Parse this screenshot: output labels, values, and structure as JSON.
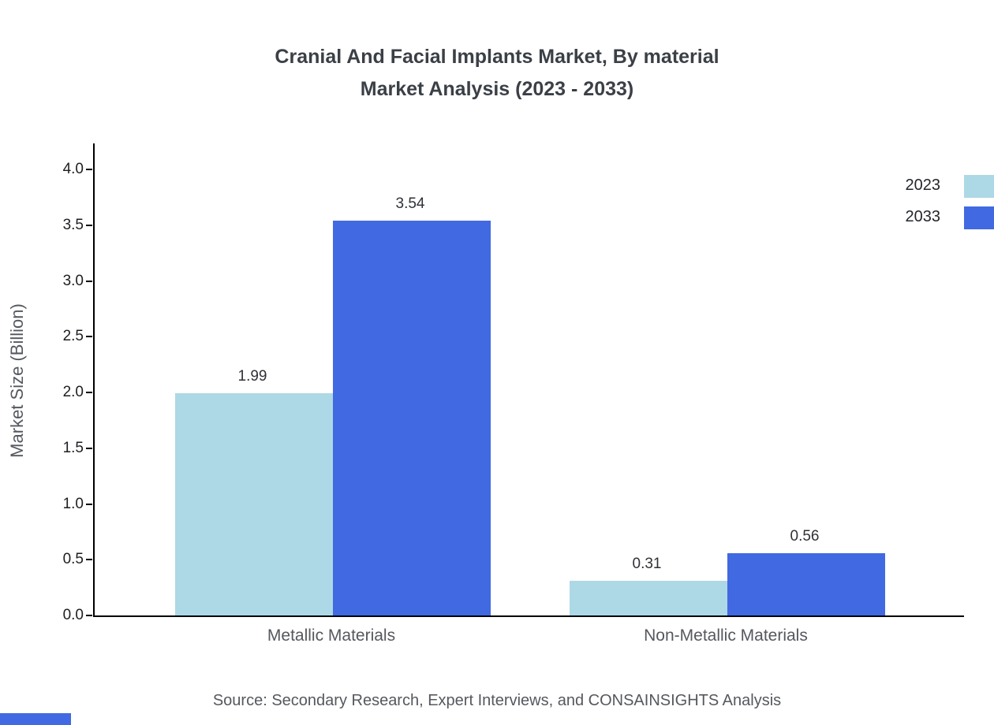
{
  "title": {
    "line1": "Cranial And Facial Implants Market, By material",
    "line2": "Market Analysis (2023 - 2033)"
  },
  "source": "Source: Secondary Research, Expert Interviews, and CONSAINSIGHTS Analysis",
  "chart_data": {
    "type": "bar",
    "title": "Cranial And Facial Implants Market, By material Market Analysis (2023 - 2033)",
    "categories": [
      "Metallic Materials",
      "Non-Metallic Materials"
    ],
    "series": [
      {
        "name": "2023",
        "color": "#add8e6",
        "values": [
          1.99,
          0.31
        ]
      },
      {
        "name": "2033",
        "color": "#4169e1",
        "values": [
          3.54,
          0.56
        ]
      }
    ],
    "xlabel": "",
    "ylabel": "Market Size (Billion)",
    "ylim": [
      0,
      4.0
    ],
    "yticks": [
      0.0,
      0.5,
      1.0,
      1.5,
      2.0,
      2.5,
      3.0,
      3.5,
      4.0
    ],
    "grid": false,
    "legend_position": "top-right",
    "value_label_format": "2-decimals"
  }
}
